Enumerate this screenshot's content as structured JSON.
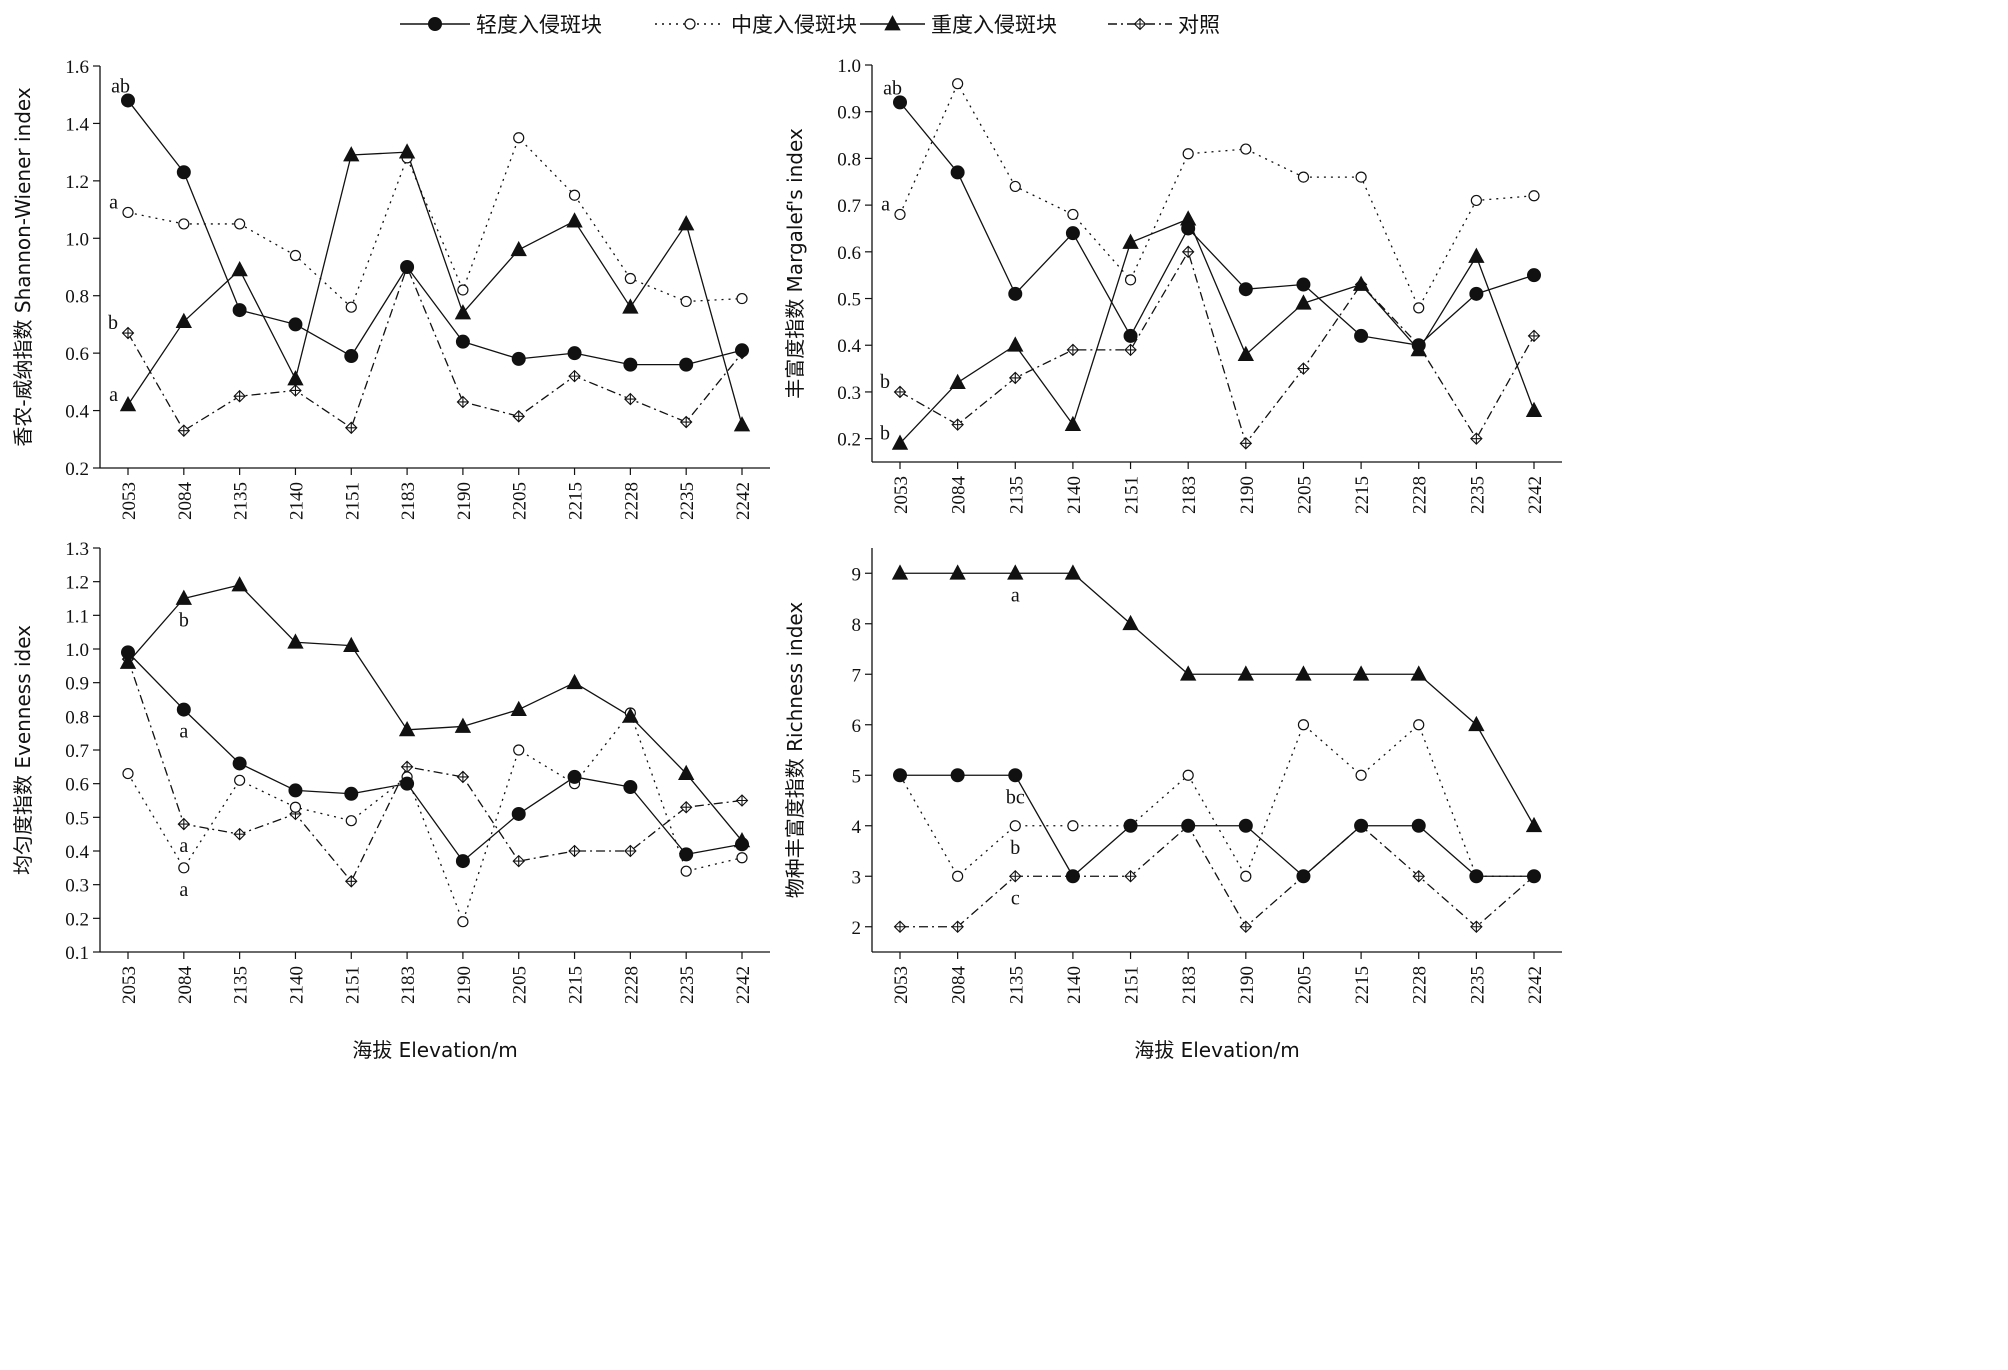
{
  "legend": {
    "items": [
      {
        "label": "轻度入侵斑块",
        "marker": "filled-circle",
        "line": "solid"
      },
      {
        "label": "中度入侵斑块",
        "marker": "open-circle",
        "line": "dotted"
      },
      {
        "label": "重度入侵斑块",
        "marker": "filled-triangle",
        "line": "solid"
      },
      {
        "label": "对照",
        "marker": "crossed-diamond",
        "line": "dashdot"
      }
    ]
  },
  "shared_xlabel": "海拔 Elevation/m",
  "chart_data": [
    {
      "type": "line",
      "ylabel": "香农-威纳指数 Shannon-Wiener index",
      "xlabel": "",
      "categories": [
        "2053",
        "2084",
        "2135",
        "2140",
        "2151",
        "2183",
        "2190",
        "2205",
        "2215",
        "2228",
        "2235",
        "2242"
      ],
      "ylim": [
        0.2,
        1.6
      ],
      "yticks": [
        "0.2",
        "0.4",
        "0.6",
        "0.8",
        "1.0",
        "1.2",
        "1.4",
        "1.6"
      ],
      "series": [
        {
          "name": "轻度入侵斑块",
          "values": [
            1.48,
            1.23,
            0.75,
            0.7,
            0.59,
            0.9,
            0.64,
            0.58,
            0.6,
            0.56,
            0.56,
            0.61
          ]
        },
        {
          "name": "中度入侵斑块",
          "values": [
            1.09,
            1.05,
            1.05,
            0.94,
            0.76,
            1.28,
            0.82,
            1.35,
            1.15,
            0.86,
            0.78,
            0.79
          ]
        },
        {
          "name": "重度入侵斑块",
          "values": [
            0.42,
            0.71,
            0.89,
            0.51,
            1.29,
            1.3,
            0.74,
            0.96,
            1.06,
            0.76,
            1.05,
            0.35
          ]
        },
        {
          "name": "对照",
          "values": [
            0.67,
            0.33,
            0.45,
            0.47,
            0.34,
            0.9,
            0.43,
            0.38,
            0.52,
            0.44,
            0.36,
            0.6
          ]
        }
      ],
      "annotations": [
        {
          "text": "ab",
          "category": "2053",
          "series": "轻度入侵斑块"
        },
        {
          "text": "a",
          "category": "2053",
          "series": "中度入侵斑块"
        },
        {
          "text": "b",
          "category": "2053",
          "series": "对照"
        },
        {
          "text": "a",
          "category": "2053",
          "series": "重度入侵斑块"
        }
      ]
    },
    {
      "type": "line",
      "ylabel": "丰富度指数 Margalef's index",
      "xlabel": "",
      "categories": [
        "2053",
        "2084",
        "2135",
        "2140",
        "2151",
        "2183",
        "2190",
        "2205",
        "2215",
        "2228",
        "2235",
        "2242"
      ],
      "ylim": [
        0.15,
        1.0
      ],
      "yticks": [
        "0.2",
        "0.3",
        "0.4",
        "0.5",
        "0.6",
        "0.7",
        "0.8",
        "0.9",
        "1.0"
      ],
      "series": [
        {
          "name": "轻度入侵斑块",
          "values": [
            0.92,
            0.77,
            0.51,
            0.64,
            0.42,
            0.65,
            0.52,
            0.53,
            0.42,
            0.4,
            0.51,
            0.55
          ]
        },
        {
          "name": "中度入侵斑块",
          "values": [
            0.68,
            0.96,
            0.74,
            0.68,
            0.54,
            0.81,
            0.82,
            0.76,
            0.76,
            0.48,
            0.71,
            0.72
          ]
        },
        {
          "name": "重度入侵斑块",
          "values": [
            0.19,
            0.32,
            0.4,
            0.23,
            0.62,
            0.67,
            0.38,
            0.49,
            0.53,
            0.39,
            0.59,
            0.26
          ]
        },
        {
          "name": "对照",
          "values": [
            0.3,
            0.23,
            0.33,
            0.39,
            0.39,
            0.6,
            0.19,
            0.35,
            0.53,
            0.4,
            0.2,
            0.42
          ]
        }
      ],
      "annotations": [
        {
          "text": "ab",
          "category": "2053",
          "series": "轻度入侵斑块"
        },
        {
          "text": "a",
          "category": "2053",
          "series": "中度入侵斑块"
        },
        {
          "text": "b",
          "category": "2053",
          "series": "对照"
        },
        {
          "text": "b",
          "category": "2053",
          "series": "重度入侵斑块"
        }
      ]
    },
    {
      "type": "line",
      "ylabel": "均匀度指数 Evenness idex",
      "xlabel": "海拔 Elevation/m",
      "categories": [
        "2053",
        "2084",
        "2135",
        "2140",
        "2151",
        "2183",
        "2190",
        "2205",
        "2215",
        "2228",
        "2235",
        "2242"
      ],
      "ylim": [
        0.1,
        1.3
      ],
      "yticks": [
        "0.1",
        "0.2",
        "0.3",
        "0.4",
        "0.5",
        "0.6",
        "0.7",
        "0.8",
        "0.9",
        "1.0",
        "1.1",
        "1.2",
        "1.3"
      ],
      "series": [
        {
          "name": "轻度入侵斑块",
          "values": [
            0.99,
            0.82,
            0.66,
            0.58,
            0.57,
            0.6,
            0.37,
            0.51,
            0.62,
            0.59,
            0.39,
            0.42
          ]
        },
        {
          "name": "中度入侵斑块",
          "values": [
            0.63,
            0.35,
            0.61,
            0.53,
            0.49,
            0.62,
            0.19,
            0.7,
            0.6,
            0.81,
            0.34,
            0.38
          ]
        },
        {
          "name": "重度入侵斑块",
          "values": [
            0.96,
            1.15,
            1.19,
            1.02,
            1.01,
            0.76,
            0.77,
            0.82,
            0.9,
            0.8,
            0.63,
            0.43
          ]
        },
        {
          "name": "对照",
          "values": [
            0.97,
            0.48,
            0.45,
            0.51,
            0.31,
            0.65,
            0.62,
            0.37,
            0.4,
            0.4,
            0.53,
            0.55
          ]
        }
      ],
      "annotations": [
        {
          "text": "b",
          "category": "2084",
          "series": "重度入侵斑块"
        },
        {
          "text": "a",
          "category": "2084",
          "series": "轻度入侵斑块"
        },
        {
          "text": "a",
          "category": "2084",
          "series": "对照"
        },
        {
          "text": "a",
          "category": "2084",
          "series": "中度入侵斑块"
        }
      ]
    },
    {
      "type": "line",
      "ylabel": "物种丰富度指数 Richness index",
      "xlabel": "海拔 Elevation/m",
      "categories": [
        "2053",
        "2084",
        "2135",
        "2140",
        "2151",
        "2183",
        "2190",
        "2205",
        "2215",
        "2228",
        "2235",
        "2242"
      ],
      "ylim": [
        1.5,
        9.5
      ],
      "yticks": [
        "2",
        "3",
        "4",
        "5",
        "6",
        "7",
        "8",
        "9"
      ],
      "series": [
        {
          "name": "轻度入侵斑块",
          "values": [
            5,
            5,
            5,
            3,
            4,
            4,
            4,
            3,
            4,
            4,
            3,
            3
          ]
        },
        {
          "name": "中度入侵斑块",
          "values": [
            5,
            3,
            4,
            4,
            4,
            5,
            3,
            6,
            5,
            6,
            3,
            3
          ]
        },
        {
          "name": "重度入侵斑块",
          "values": [
            9,
            9,
            9,
            9,
            8,
            7,
            7,
            7,
            7,
            7,
            6,
            4
          ]
        },
        {
          "name": "对照",
          "values": [
            2,
            2,
            3,
            3,
            3,
            4,
            2,
            3,
            4,
            3,
            2,
            3
          ]
        }
      ],
      "annotations": [
        {
          "text": "a",
          "category": "2135",
          "series": "重度入侵斑块"
        },
        {
          "text": "bc",
          "category": "2135",
          "series": "轻度入侵斑块"
        },
        {
          "text": "b",
          "category": "2135",
          "series": "中度入侵斑块"
        },
        {
          "text": "c",
          "category": "2135",
          "series": "对照"
        }
      ]
    }
  ]
}
